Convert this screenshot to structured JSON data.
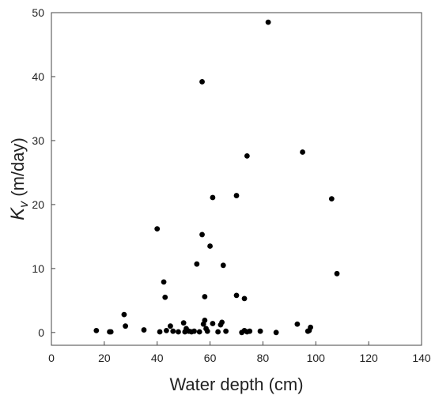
{
  "chart_data": {
    "type": "scatter",
    "title": "",
    "xlabel": "Water depth (cm)",
    "ylabel_symbol": "K",
    "ylabel_subscript": "v",
    "ylabel_rest": " (m/day)",
    "xlim": [
      0,
      140
    ],
    "ylim": [
      -2,
      50
    ],
    "xticks": [
      0,
      20,
      40,
      60,
      80,
      100,
      120,
      140
    ],
    "yticks": [
      0,
      10,
      20,
      30,
      40,
      50
    ],
    "grid": false,
    "legend": "none",
    "marker_color": "#000000",
    "points": [
      [
        17,
        0.3
      ],
      [
        22,
        0.1
      ],
      [
        22.5,
        0.1
      ],
      [
        27.5,
        2.8
      ],
      [
        28,
        1.0
      ],
      [
        35,
        0.4
      ],
      [
        40,
        16.2
      ],
      [
        41,
        0.1
      ],
      [
        42.5,
        7.9
      ],
      [
        43,
        5.5
      ],
      [
        43.5,
        0.3
      ],
      [
        45,
        1.0
      ],
      [
        46,
        0.2
      ],
      [
        48,
        0.1
      ],
      [
        50,
        1.5
      ],
      [
        50.5,
        0.1
      ],
      [
        51,
        0.6
      ],
      [
        52,
        0.2
      ],
      [
        53,
        0.1
      ],
      [
        54,
        0.2
      ],
      [
        55,
        10.7
      ],
      [
        56,
        0.1
      ],
      [
        57,
        39.2
      ],
      [
        57,
        15.3
      ],
      [
        57.5,
        1.3
      ],
      [
        58,
        5.6
      ],
      [
        58,
        1.9
      ],
      [
        58.5,
        0.6
      ],
      [
        59,
        0.2
      ],
      [
        60,
        13.5
      ],
      [
        61,
        21.1
      ],
      [
        61,
        1.4
      ],
      [
        63,
        0.1
      ],
      [
        64,
        1.2
      ],
      [
        64.5,
        1.6
      ],
      [
        65,
        10.5
      ],
      [
        66,
        0.2
      ],
      [
        70,
        21.4
      ],
      [
        70,
        5.8
      ],
      [
        72,
        0.0
      ],
      [
        73,
        5.3
      ],
      [
        73,
        0.3
      ],
      [
        74,
        27.6
      ],
      [
        74,
        0.1
      ],
      [
        75,
        0.2
      ],
      [
        79,
        0.2
      ],
      [
        82,
        48.5
      ],
      [
        85,
        0.0
      ],
      [
        93,
        1.3
      ],
      [
        95,
        28.2
      ],
      [
        97,
        0.2
      ],
      [
        97.5,
        0.3
      ],
      [
        98,
        0.8
      ],
      [
        106,
        20.9
      ],
      [
        108,
        9.2
      ]
    ]
  }
}
